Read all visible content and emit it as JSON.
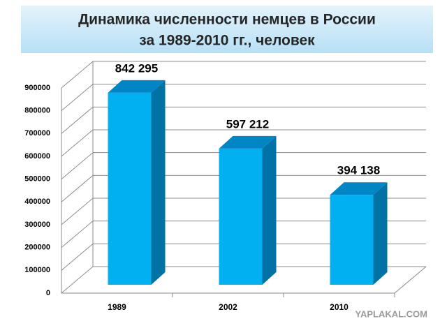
{
  "chart_data": {
    "type": "bar3d",
    "title": "Динамика численности  немцев в России",
    "subtitle": "за 1989-2010 гг., человек",
    "categories": [
      "1989",
      "2002",
      "2010"
    ],
    "values": [
      842295,
      597212,
      394138
    ],
    "value_labels": [
      "842 295",
      "597 212",
      "394 138"
    ],
    "color": "#00b0f0",
    "ylim": [
      0,
      900000
    ],
    "yticks": [
      0,
      100000,
      200000,
      300000,
      400000,
      500000,
      600000,
      700000,
      800000,
      900000
    ],
    "grid": true
  },
  "watermark": "YAPLAKAL.COM"
}
